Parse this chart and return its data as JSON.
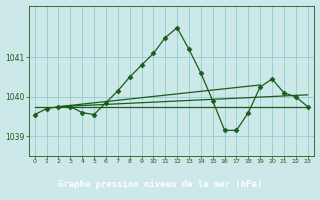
{
  "title": "Graphe pression niveau de la mer (hPa)",
  "background_color": "#cce8e8",
  "plot_bg_color": "#cce8e8",
  "label_bg_color": "#2d6b2d",
  "label_text_color": "#ffffff",
  "line_color": "#1a5c1a",
  "grid_color": "#88c8c8",
  "xlim": [
    -0.5,
    23.5
  ],
  "ylim": [
    1038.5,
    1042.3
  ],
  "yticks": [
    1039,
    1040,
    1041
  ],
  "xticks": [
    0,
    1,
    2,
    3,
    4,
    5,
    6,
    7,
    8,
    9,
    10,
    11,
    12,
    13,
    14,
    15,
    16,
    17,
    18,
    19,
    20,
    21,
    22,
    23
  ],
  "main_series": [
    1039.55,
    1039.7,
    1039.75,
    1039.75,
    1039.6,
    1039.55,
    1039.85,
    1040.15,
    1040.5,
    1040.8,
    1041.1,
    1041.5,
    1041.75,
    1041.2,
    1040.6,
    1039.9,
    1039.15,
    1039.15,
    1039.6,
    1040.25,
    1040.45,
    1040.1,
    1040.0,
    1039.75
  ],
  "flat_line_x": [
    0,
    23
  ],
  "flat_line_y": [
    1039.75,
    1039.75
  ],
  "trend1_x": [
    2,
    23
  ],
  "trend1_y": [
    1039.75,
    1040.05
  ],
  "trend2_x": [
    2,
    19
  ],
  "trend2_y": [
    1039.75,
    1040.3
  ]
}
